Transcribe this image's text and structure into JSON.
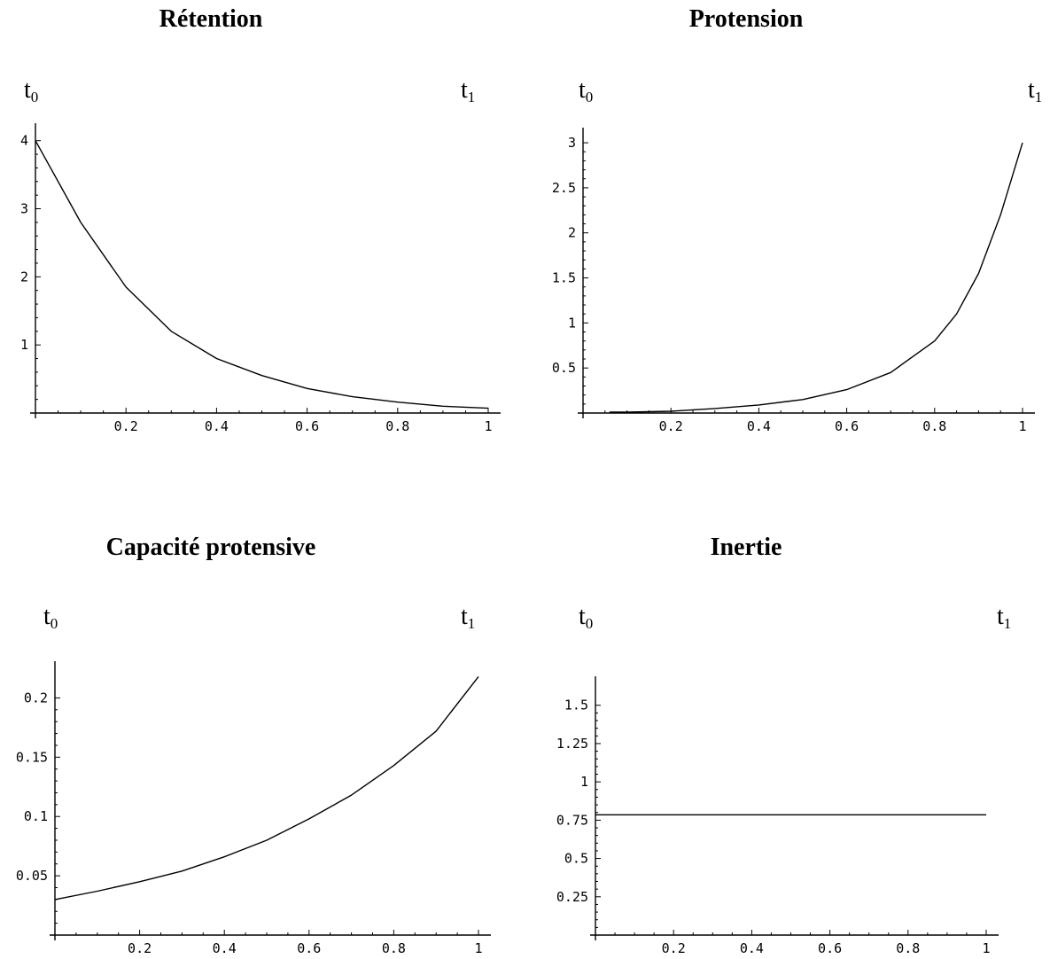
{
  "panels": [
    {
      "title": "Rétention",
      "t0": "t",
      "t0_sub": "0",
      "t1": "t",
      "t1_sub": "1"
    },
    {
      "title": "Protension",
      "t0": "t",
      "t0_sub": "0",
      "t1": "t",
      "t1_sub": "1"
    },
    {
      "title": "Capacité protensive",
      "t0": "t",
      "t0_sub": "0",
      "t1": "t",
      "t1_sub": "1"
    },
    {
      "title": "Inertie",
      "t0": "t",
      "t0_sub": "0",
      "t1": "t",
      "t1_sub": "1"
    }
  ],
  "chart_data": [
    {
      "type": "line",
      "title": "Rétention",
      "xlabel": "",
      "ylabel": "",
      "xlim": [
        0,
        1
      ],
      "ylim": [
        0,
        4.1
      ],
      "xticks": [
        "0.2",
        "0.4",
        "0.6",
        "0.8",
        "1"
      ],
      "yticks": [
        "1",
        "2",
        "3",
        "4"
      ],
      "grid": false,
      "series": [
        {
          "x": [
            0,
            0.1,
            0.2,
            0.3,
            0.4,
            0.5,
            0.6,
            0.7,
            0.8,
            0.9,
            1.0
          ],
          "y": [
            4.0,
            2.8,
            1.85,
            1.2,
            0.8,
            0.55,
            0.36,
            0.24,
            0.16,
            0.1,
            0.07
          ]
        }
      ]
    },
    {
      "type": "line",
      "title": "Protension",
      "xlabel": "",
      "ylabel": "",
      "xlim": [
        0,
        1
      ],
      "ylim": [
        0,
        3.05
      ],
      "xticks": [
        "0.2",
        "0.4",
        "0.6",
        "0.8",
        "1"
      ],
      "yticks": [
        "0.5",
        "1",
        "1.5",
        "2",
        "2.5",
        "3"
      ],
      "grid": false,
      "series": [
        {
          "x": [
            0.06,
            0.1,
            0.2,
            0.3,
            0.4,
            0.5,
            0.6,
            0.7,
            0.8,
            0.85,
            0.9,
            0.95,
            1.0
          ],
          "y": [
            0.01,
            0.01,
            0.02,
            0.05,
            0.09,
            0.15,
            0.26,
            0.45,
            0.8,
            1.1,
            1.55,
            2.2,
            3.0
          ]
        }
      ]
    },
    {
      "type": "line",
      "title": "Capacité protensive",
      "xlabel": "",
      "ylabel": "",
      "xlim": [
        0,
        1
      ],
      "ylim": [
        0,
        0.222
      ],
      "xticks": [
        "0.2",
        "0.4",
        "0.6",
        "0.8",
        "1"
      ],
      "yticks": [
        "0.05",
        "0.1",
        "0.15",
        "0.2"
      ],
      "grid": false,
      "series": [
        {
          "x": [
            0,
            0.1,
            0.2,
            0.3,
            0.4,
            0.5,
            0.6,
            0.7,
            0.8,
            0.9,
            1.0
          ],
          "y": [
            0.03,
            0.037,
            0.045,
            0.054,
            0.066,
            0.08,
            0.098,
            0.118,
            0.143,
            0.172,
            0.218
          ]
        }
      ]
    },
    {
      "type": "line",
      "title": "Inertie",
      "xlabel": "",
      "ylabel": "",
      "xlim": [
        0,
        1
      ],
      "ylim": [
        0,
        1.62
      ],
      "xticks": [
        "0.2",
        "0.4",
        "0.6",
        "0.8",
        "1"
      ],
      "yticks": [
        "0.25",
        "0.5",
        "0.75",
        "1",
        "1.25",
        "1.5"
      ],
      "grid": false,
      "series": [
        {
          "x": [
            0,
            1.0
          ],
          "y": [
            0.785,
            0.785
          ]
        }
      ]
    }
  ]
}
